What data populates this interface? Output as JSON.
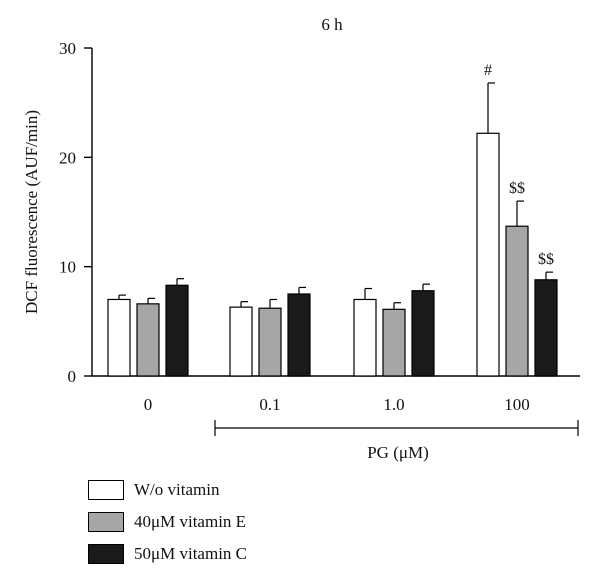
{
  "chart_data": {
    "type": "bar",
    "title": "6 h",
    "ylabel": "DCF fluorescence (AUF/min)",
    "xlabel": "PG (μM)",
    "ylim": [
      0,
      30
    ],
    "yticks": [
      "0",
      "10",
      "20",
      "30"
    ],
    "categories": [
      "0",
      "0.1",
      "1.0",
      "100"
    ],
    "series": [
      {
        "name": "W/o vitamin",
        "color": "#ffffff",
        "values": [
          7.0,
          6.3,
          7.0,
          22.2
        ],
        "errors": [
          0.4,
          0.5,
          1.0,
          4.6
        ]
      },
      {
        "name": "40μM vitamin E",
        "color": "#a6a6a6",
        "values": [
          6.6,
          6.2,
          6.1,
          13.7
        ],
        "errors": [
          0.5,
          0.8,
          0.6,
          2.3
        ]
      },
      {
        "name": "50μM vitamin C",
        "color": "#1a1a1a",
        "values": [
          8.3,
          7.5,
          7.8,
          8.8
        ],
        "errors": [
          0.6,
          0.6,
          0.6,
          0.7
        ]
      }
    ],
    "annotations": [
      {
        "text": "#",
        "category": "100",
        "series": 0
      },
      {
        "text": "$$",
        "category": "100",
        "series": 1
      },
      {
        "text": "$$",
        "category": "100",
        "series": 2
      }
    ],
    "grid": false,
    "legend_position": "bottom-left"
  }
}
